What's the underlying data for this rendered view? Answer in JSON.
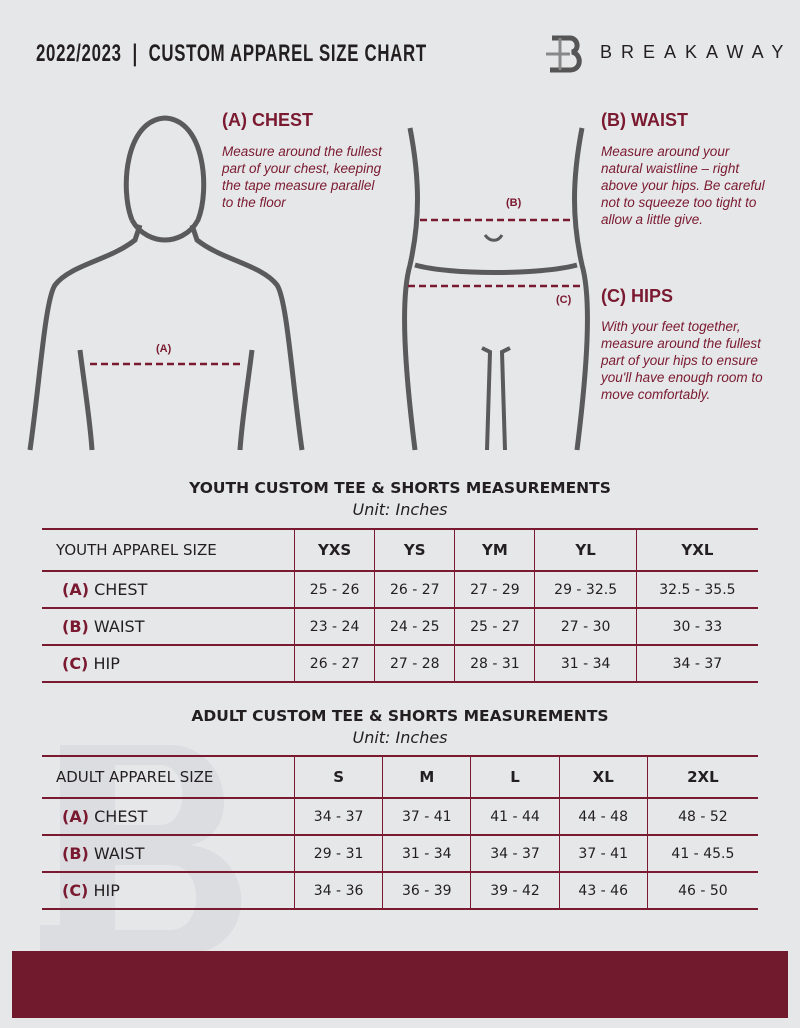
{
  "header": {
    "title": "2022/2023  |  CUSTOM APPAREL SIZE CHART",
    "brand": "BREAKAWAY"
  },
  "measures": {
    "chest": {
      "heading": "(A) CHEST",
      "text": "Measure around the fullest part of your chest, keeping the tape measure parallel to the floor",
      "marker": "(A)"
    },
    "waist": {
      "heading": "(B) WAIST",
      "text": "Measure around your natural waistline – right above your hips. Be careful not to squeeze too tight to allow a little give.",
      "marker": "(B)"
    },
    "hips": {
      "heading": "(C) HIPS",
      "text": "With your feet together, measure around the fullest part of your hips to ensure you'll have enough room to move comfortably.",
      "marker": "(C)"
    }
  },
  "youth": {
    "title": "YOUTH CUSTOM TEE & SHORTS MEASUREMENTS",
    "unit": "Unit: Inches",
    "header": "YOUTH APPAREL SIZE",
    "sizes": [
      "YXS",
      "YS",
      "YM",
      "YL",
      "YXL"
    ],
    "rows": [
      {
        "letter": "(A)",
        "label": "CHEST",
        "values": [
          "25 - 26",
          "26 - 27",
          "27 - 29",
          "29 - 32.5",
          "32.5 - 35.5"
        ]
      },
      {
        "letter": "(B)",
        "label": "WAIST",
        "values": [
          "23 - 24",
          "24 - 25",
          "25 - 27",
          "27 - 30",
          "30 - 33"
        ]
      },
      {
        "letter": "(C)",
        "label": "HIP",
        "values": [
          "26 - 27",
          "27 - 28",
          "28 - 31",
          "31 - 34",
          "34 - 37"
        ]
      }
    ]
  },
  "adult": {
    "title": "ADULT CUSTOM TEE & SHORTS MEASUREMENTS",
    "unit": "Unit: Inches",
    "header": "ADULT APPAREL SIZE",
    "sizes": [
      "S",
      "M",
      "L",
      "XL",
      "2XL"
    ],
    "rows": [
      {
        "letter": "(A)",
        "label": "CHEST",
        "values": [
          "34 - 37",
          "37 - 41",
          "41 - 44",
          "44 - 48",
          "48 - 52"
        ]
      },
      {
        "letter": "(B)",
        "label": "WAIST",
        "values": [
          "29 - 31",
          "31 - 34",
          "34 - 37",
          "37 - 41",
          "41 - 45.5"
        ]
      },
      {
        "letter": "(C)",
        "label": "HIP",
        "values": [
          "34 - 36",
          "36 - 39",
          "39 - 42",
          "43 - 46",
          "46 - 50"
        ]
      }
    ]
  },
  "colors": {
    "accent": "#7a1a30",
    "background": "#e6e7e9"
  }
}
